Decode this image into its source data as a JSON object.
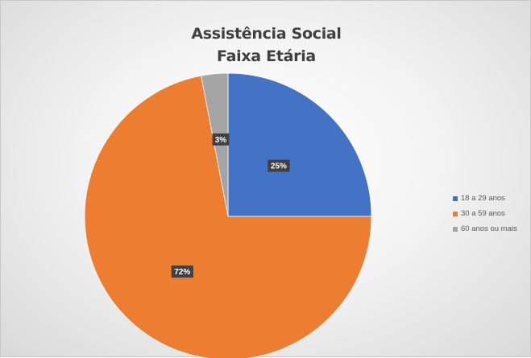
{
  "chart_data": {
    "type": "pie",
    "title": "Assistência Social",
    "subtitle": "Faixa Etária",
    "start_angle_deg": 0,
    "direction": "clockwise",
    "slices": [
      {
        "label": "18 a 29 anos",
        "value": 25,
        "data_label": "25%",
        "color": "#4472C4"
      },
      {
        "label": "30 a 59 anos",
        "value": 72,
        "data_label": "72%",
        "color": "#ED7D31"
      },
      {
        "label": "60 anos ou mais",
        "value": 3,
        "data_label": "3%",
        "color": "#A5A5A5"
      }
    ],
    "legend_position": "right",
    "data_label_background": "#404040"
  }
}
